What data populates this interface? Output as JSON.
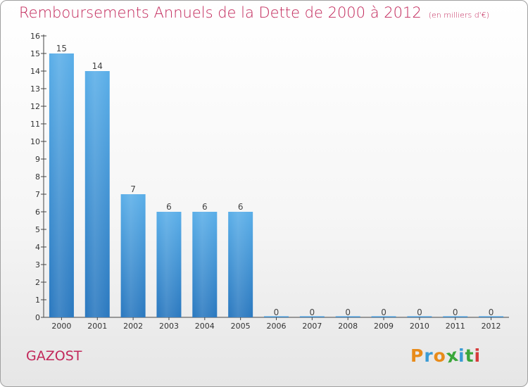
{
  "chart_data": {
    "type": "bar",
    "title": "Remboursements Annuels de la Dette de 2000 à 2012",
    "unit_note": "(en milliers d'€)",
    "categories": [
      "2000",
      "2001",
      "2002",
      "2003",
      "2004",
      "2005",
      "2006",
      "2007",
      "2008",
      "2009",
      "2010",
      "2011",
      "2012"
    ],
    "values": [
      15,
      14,
      7,
      6,
      6,
      6,
      0,
      0,
      0,
      0,
      0,
      0,
      0
    ],
    "ylim": [
      0,
      16
    ],
    "yticks": [
      0,
      1,
      2,
      3,
      4,
      5,
      6,
      7,
      8,
      9,
      10,
      11,
      12,
      13,
      14,
      15,
      16
    ],
    "xlabel": "",
    "ylabel": "",
    "grid": false,
    "bar_color": "#3d8fd6"
  },
  "footer": {
    "commune": "GAZOST",
    "logo_letters": [
      "P",
      "r",
      "o",
      "x",
      "i",
      "t",
      "i"
    ],
    "logo_colors": [
      "#e88b1a",
      "#3a9bd5",
      "#e88b1a",
      "#3aa63a",
      "#3a9bd5",
      "#3aa63a",
      "#d63a3a"
    ]
  }
}
